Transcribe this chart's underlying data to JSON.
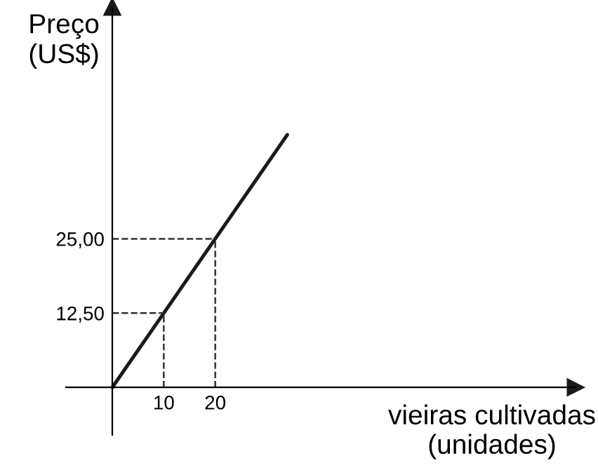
{
  "chart_data": {
    "type": "line",
    "xlabel": "vieiras cultivadas\n(unidades)",
    "ylabel": "Preço\n(US$)",
    "x": [
      0,
      10,
      20,
      34
    ],
    "series": [
      {
        "color": "#1a1a1a",
        "values": [
          0,
          12.5,
          25,
          42.5
        ]
      }
    ],
    "xlim": [
      -9,
      90
    ],
    "ylim": [
      -8,
      64
    ],
    "xticks": [
      10,
      20
    ],
    "yticks": [
      {
        "value": 12.5,
        "label": "12,50"
      },
      {
        "value": 25,
        "label": "25,00"
      }
    ],
    "ref_lines": [
      {
        "axis": "y",
        "value": 12.5,
        "line_style": "dashed",
        "color": "#333333"
      },
      {
        "axis": "y",
        "value": 25,
        "line_style": "dashed",
        "color": "#333333"
      },
      {
        "axis": "x",
        "value": 10,
        "line_style": "dashed",
        "color": "#333333"
      },
      {
        "axis": "x",
        "value": 20,
        "line_style": "dashed",
        "color": "#333333"
      }
    ],
    "grid": false,
    "legend": false,
    "marker": "none",
    "line_style": "solid"
  }
}
